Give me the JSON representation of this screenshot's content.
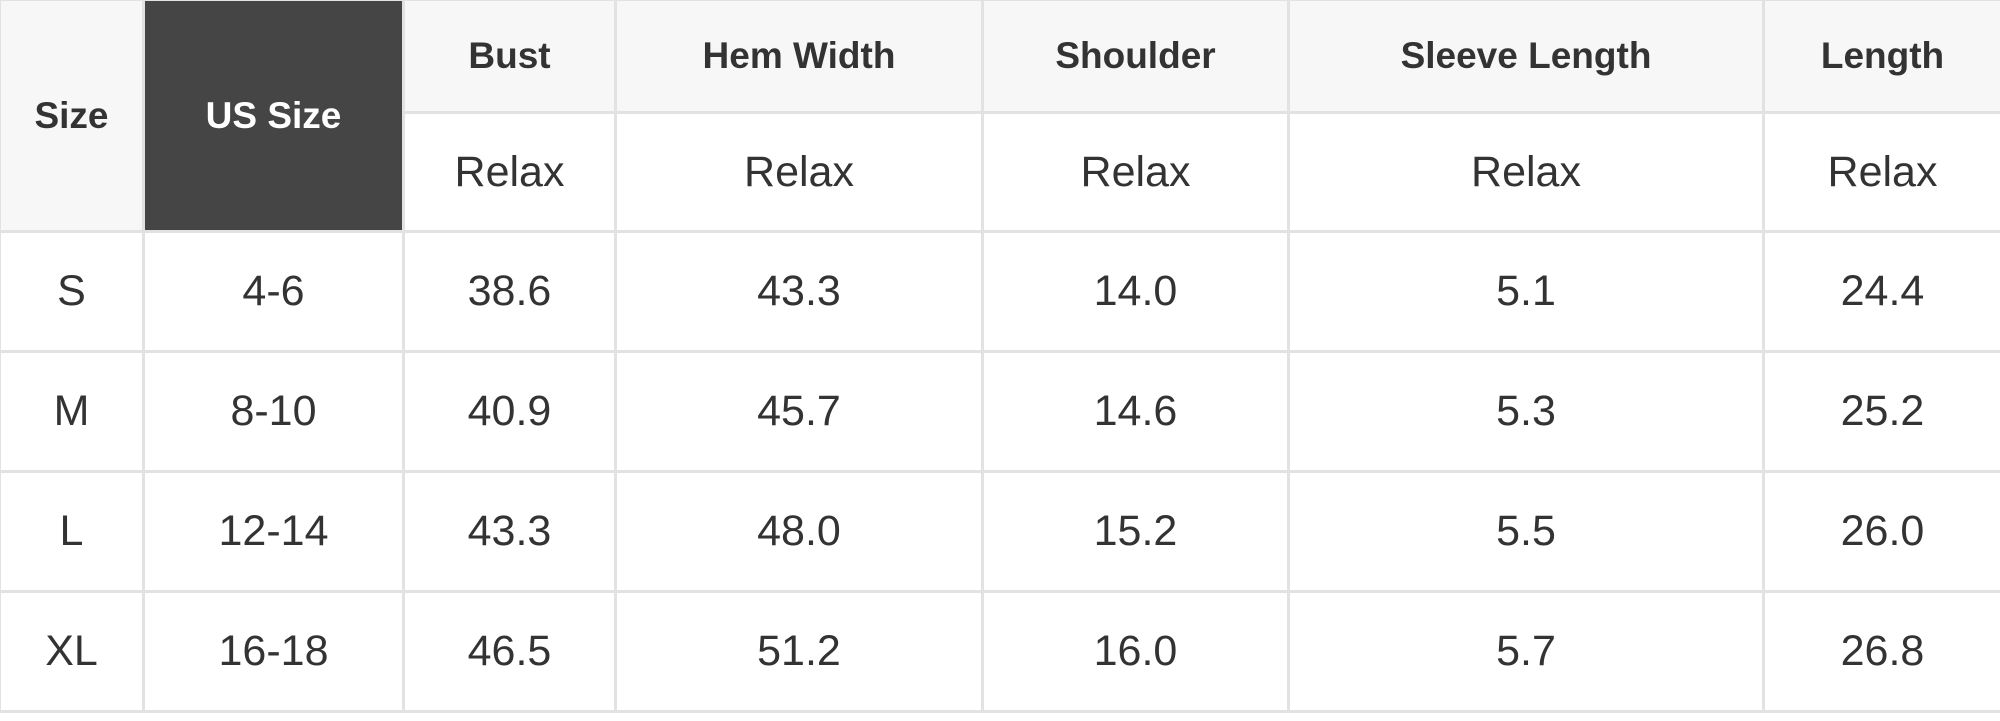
{
  "table": {
    "header": {
      "size": "Size",
      "us_size": "US Size",
      "measures": [
        "Bust",
        "Hem Width",
        "Shoulder",
        "Sleeve Length",
        "Length"
      ],
      "fit": [
        "Relax",
        "Relax",
        "Relax",
        "Relax",
        "Relax"
      ]
    },
    "rows": [
      {
        "size": "S",
        "us": "4-6",
        "values": [
          "38.6",
          "43.3",
          "14.0",
          "5.1",
          "24.4"
        ]
      },
      {
        "size": "M",
        "us": "8-10",
        "values": [
          "40.9",
          "45.7",
          "14.6",
          "5.3",
          "25.2"
        ]
      },
      {
        "size": "L",
        "us": "12-14",
        "values": [
          "43.3",
          "48.0",
          "15.2",
          "5.5",
          "26.0"
        ]
      },
      {
        "size": "XL",
        "us": "16-18",
        "values": [
          "46.5",
          "51.2",
          "16.0",
          "5.7",
          "26.8"
        ]
      }
    ]
  },
  "colors": {
    "header_bg": "#f7f7f7",
    "highlight_bg": "#454545",
    "border": "#e2e2e2",
    "text": "#333333"
  }
}
